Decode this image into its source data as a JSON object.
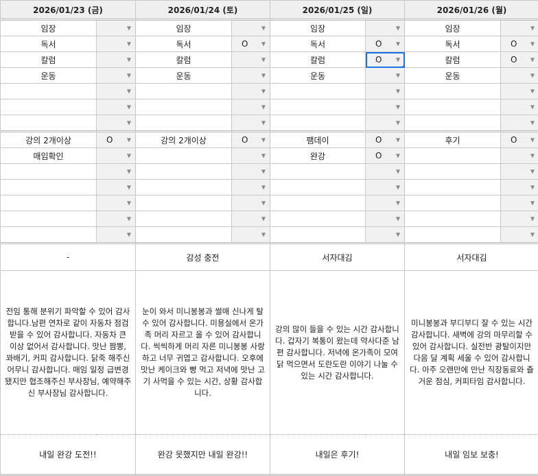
{
  "colors": {
    "selection": "#1a73e8",
    "check_cell_bg": "#f1f1f1",
    "header_bg": "#efefef"
  },
  "icons": {
    "dropdown": "dropdown-arrow-icon"
  },
  "selected_cell": {
    "day": 2,
    "row": "tasks",
    "index": 2
  },
  "days": [
    {
      "date": "2026/01/23 (금)",
      "tasks": [
        {
          "label": "임장",
          "check": ""
        },
        {
          "label": "독서",
          "check": ""
        },
        {
          "label": "칼럼",
          "check": ""
        },
        {
          "label": "운동",
          "check": ""
        },
        {
          "label": "",
          "check": ""
        },
        {
          "label": "",
          "check": ""
        },
        {
          "label": "",
          "check": ""
        }
      ],
      "extras": [
        {
          "label": "강의 2개이상",
          "check": "O"
        },
        {
          "label": "매임확인",
          "check": ""
        },
        {
          "label": "",
          "check": ""
        },
        {
          "label": "",
          "check": ""
        },
        {
          "label": "",
          "check": ""
        },
        {
          "label": "",
          "check": ""
        },
        {
          "label": "",
          "check": ""
        }
      ],
      "theme": "-",
      "gratitude": "전임 통해 분위기 파악할 수 있어 감사합니다.남편 연차로 같이 자동차 점검 받을 수 있어 감사합니다. 자동차 큰 이상 없어서 감사합니다. 맛난 짬뽕, 꽈배기, 커피 감사합니다. 닭죽 해주신 어무니 감사합니다. 매임 일정 급변경 됐지만 협조해주신 부사장님, 예약해주신 부사장님 감사합니다.",
      "tomorrow": "내일 완강 도전!!"
    },
    {
      "date": "2026/01/24 (토)",
      "tasks": [
        {
          "label": "임장",
          "check": ""
        },
        {
          "label": "독서",
          "check": "O"
        },
        {
          "label": "칼럼",
          "check": ""
        },
        {
          "label": "운동",
          "check": ""
        },
        {
          "label": "",
          "check": ""
        },
        {
          "label": "",
          "check": ""
        },
        {
          "label": "",
          "check": ""
        }
      ],
      "extras": [
        {
          "label": "강의 2개이상",
          "check": "O"
        },
        {
          "label": "",
          "check": ""
        },
        {
          "label": "",
          "check": ""
        },
        {
          "label": "",
          "check": ""
        },
        {
          "label": "",
          "check": ""
        },
        {
          "label": "",
          "check": ""
        },
        {
          "label": "",
          "check": ""
        }
      ],
      "theme": "감성 충전",
      "gratitude": "눈이 와서 미니봉봉과 썰매 신나게 탈 수 있어 감사합니다. 미용실에서 온가족 머리 자르고 올 수 있어 감사합니다. 씩씩하게 머리 자른 미니봉봉 사랑하고 너무 귀엽고 감사합니다. 오후에 맛난 케이크와 빵 먹고 저녁에 맛난 고기 사먹을 수 있는 시간, 상황 감사합니다.",
      "tomorrow": "완강 못했지만 내일 완강!!"
    },
    {
      "date": "2026/01/25 (일)",
      "tasks": [
        {
          "label": "임장",
          "check": ""
        },
        {
          "label": "독서",
          "check": "O"
        },
        {
          "label": "칼럼",
          "check": "O"
        },
        {
          "label": "운동",
          "check": ""
        },
        {
          "label": "",
          "check": ""
        },
        {
          "label": "",
          "check": ""
        },
        {
          "label": "",
          "check": ""
        }
      ],
      "extras": [
        {
          "label": "팸데이",
          "check": "O"
        },
        {
          "label": "완강",
          "check": "O"
        },
        {
          "label": "",
          "check": ""
        },
        {
          "label": "",
          "check": ""
        },
        {
          "label": "",
          "check": ""
        },
        {
          "label": "",
          "check": ""
        },
        {
          "label": "",
          "check": ""
        }
      ],
      "theme": "서자대김",
      "gratitude": "강의 많이 들을 수 있는 시간 감사합니다. 갑자기 복통이 왔는데 약사다준 남편 감사합니다. 저녁에 온가족이 모여 닭 먹으면서 도란도란 이야기 나눌 수 있는 시간 감사합니다.",
      "tomorrow": "내일은 후기!"
    },
    {
      "date": "2026/01/26 (월)",
      "tasks": [
        {
          "label": "임장",
          "check": ""
        },
        {
          "label": "독서",
          "check": "O"
        },
        {
          "label": "칼럼",
          "check": "O"
        },
        {
          "label": "운동",
          "check": ""
        },
        {
          "label": "",
          "check": ""
        },
        {
          "label": "",
          "check": ""
        },
        {
          "label": "",
          "check": ""
        }
      ],
      "extras": [
        {
          "label": "후기",
          "check": "O"
        },
        {
          "label": "",
          "check": ""
        },
        {
          "label": "",
          "check": ""
        },
        {
          "label": "",
          "check": ""
        },
        {
          "label": "",
          "check": ""
        },
        {
          "label": "",
          "check": ""
        },
        {
          "label": "",
          "check": ""
        }
      ],
      "theme": "서자대김",
      "gratitude": "미니봉봉과 부디부디 잘 수 있는 시간 감사합니다. 새벽에 강의 마무리할 수 있어 감사합니다. 실전반 광탈이지만 다음 달 계획 세울 수 있어 감사합니다. 아주 오랜만에 만난 직장동료와 즐거운 점심, 커피타임 감사합니다.",
      "tomorrow": "내일 임보 보충!"
    }
  ]
}
